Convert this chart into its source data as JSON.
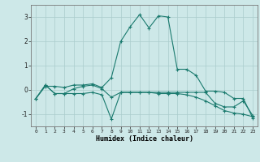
{
  "xlabel": "Humidex (Indice chaleur)",
  "bg_color": "#cde8e8",
  "grid_color": "#aacccc",
  "line_color": "#1a7a6e",
  "xlim": [
    -0.5,
    23.5
  ],
  "ylim": [
    -1.5,
    3.5
  ],
  "yticks": [
    -1,
    0,
    1,
    2,
    3
  ],
  "xticks": [
    0,
    1,
    2,
    3,
    4,
    5,
    6,
    7,
    8,
    9,
    10,
    11,
    12,
    13,
    14,
    15,
    16,
    17,
    18,
    19,
    20,
    21,
    22,
    23
  ],
  "line1_x": [
    0,
    1,
    2,
    3,
    4,
    5,
    6,
    7,
    8,
    9,
    10,
    11,
    12,
    13,
    14,
    15,
    16,
    17,
    18,
    19,
    20,
    21,
    22,
    23
  ],
  "line1_y": [
    -0.35,
    0.15,
    0.15,
    0.1,
    0.2,
    0.2,
    0.25,
    0.1,
    0.5,
    2.0,
    2.6,
    3.1,
    2.55,
    3.05,
    3.0,
    0.85,
    0.85,
    0.6,
    -0.05,
    -0.05,
    -0.1,
    -0.35,
    -0.35,
    -1.15
  ],
  "line2_x": [
    0,
    1,
    2,
    3,
    4,
    5,
    6,
    7,
    8,
    9,
    10,
    11,
    12,
    13,
    14,
    15,
    16,
    17,
    18,
    19,
    20,
    21,
    22,
    23
  ],
  "line2_y": [
    -0.35,
    0.2,
    -0.15,
    -0.15,
    -0.15,
    -0.15,
    -0.1,
    -0.2,
    -1.2,
    -0.1,
    -0.1,
    -0.1,
    -0.1,
    -0.1,
    -0.1,
    -0.1,
    -0.1,
    -0.1,
    -0.1,
    -0.55,
    -0.7,
    -0.7,
    -0.45,
    -1.05
  ],
  "line3_x": [
    0,
    1,
    2,
    3,
    4,
    5,
    6,
    7,
    8,
    9,
    10,
    11,
    12,
    13,
    14,
    15,
    16,
    17,
    18,
    19,
    20,
    21,
    22,
    23
  ],
  "line3_y": [
    -0.35,
    0.2,
    -0.15,
    -0.15,
    0.05,
    0.15,
    0.2,
    0.05,
    -0.3,
    -0.1,
    -0.1,
    -0.1,
    -0.1,
    -0.15,
    -0.15,
    -0.15,
    -0.2,
    -0.3,
    -0.45,
    -0.65,
    -0.85,
    -0.95,
    -1.0,
    -1.1
  ]
}
